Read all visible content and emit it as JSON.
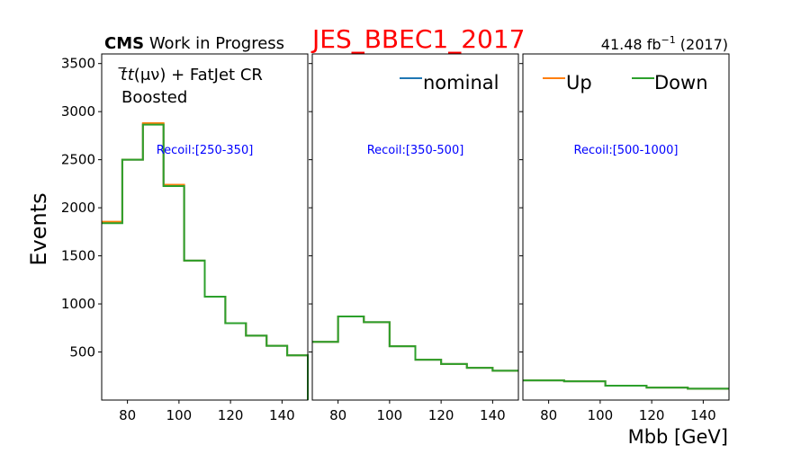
{
  "header": {
    "cms_bold": "CMS",
    "cms_rest": " Work in Progress",
    "systematic": "JES_BBEC1_2017",
    "lumi_value": "41.48 fb",
    "lumi_exp": "−1",
    "lumi_year": " (2017)"
  },
  "colors": {
    "nominal": "#1f77b4",
    "up": "#ff7f0e",
    "down": "#2ca02c",
    "systematic_title": "#ff0000",
    "recoil_label": "#0000ff"
  },
  "region": {
    "line1_pre": "t",
    "line1_paren": "(μν) + FatJet CR",
    "line2": "Boosted"
  },
  "legend": {
    "nominal": "nominal",
    "up": "Up",
    "down": "Down"
  },
  "chart_data": {
    "type": "histogram",
    "ylabel": "Events",
    "xlabel": "Mbb [GeV]",
    "ylim": [
      0,
      3600
    ],
    "yticks": [
      500,
      1000,
      1500,
      2000,
      2500,
      3000,
      3500
    ],
    "xlim": [
      70,
      150
    ],
    "xticks": [
      80,
      100,
      120,
      140
    ],
    "panels": [
      {
        "recoil": "Recoil:[250-350]",
        "edges": [
          70,
          78,
          86,
          94,
          102,
          110,
          118,
          126,
          134,
          142,
          150
        ],
        "series": [
          {
            "name": "nominal",
            "values": [
              1845,
              2500,
              2870,
              2230,
              1450,
              1075,
              800,
              670,
              565,
              465
            ]
          },
          {
            "name": "Up",
            "values": [
              1855,
              2500,
              2880,
              2240,
              1450,
              1075,
              800,
              670,
              565,
              465
            ]
          },
          {
            "name": "Down",
            "values": [
              1840,
              2500,
              2865,
              2225,
              1450,
              1075,
              800,
              670,
              565,
              465
            ]
          }
        ]
      },
      {
        "recoil": "Recoil:[350-500]",
        "edges": [
          70,
          80,
          90,
          100,
          110,
          120,
          130,
          140,
          150
        ],
        "series": [
          {
            "name": "nominal",
            "values": [
              605,
              870,
              810,
              560,
              420,
              375,
              335,
              305
            ]
          },
          {
            "name": "Up",
            "values": [
              605,
              870,
              810,
              560,
              420,
              375,
              335,
              305
            ]
          },
          {
            "name": "Down",
            "values": [
              605,
              870,
              810,
              560,
              420,
              375,
              335,
              305
            ]
          }
        ]
      },
      {
        "recoil": "Recoil:[500-1000]",
        "edges": [
          70,
          86,
          102,
          118,
          134,
          150
        ],
        "series": [
          {
            "name": "nominal",
            "values": [
              205,
              195,
              150,
              130,
              118
            ]
          },
          {
            "name": "Up",
            "values": [
              205,
              195,
              150,
              130,
              118
            ]
          },
          {
            "name": "Down",
            "values": [
              205,
              195,
              150,
              130,
              118
            ]
          }
        ]
      }
    ]
  }
}
